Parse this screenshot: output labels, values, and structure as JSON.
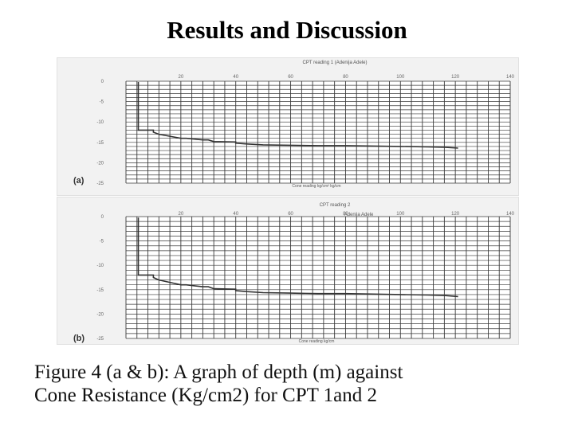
{
  "slide": {
    "title": "Results and Discussion",
    "caption_line1": "Figure 4 (a & b): A graph of depth (m) against",
    "caption_line2": "Cone Resistance (Kg/cm2) for CPT 1and 2"
  },
  "chart_data": [
    {
      "type": "line",
      "panel_label": "(a)",
      "title": "CPT reading 1 (Adenija Adele)",
      "xlabel": "Cone reading kg/cm² kg/cm",
      "ylabel": "",
      "x_ticks": [
        "20",
        "40",
        "60",
        "80",
        "100",
        "120",
        "140"
      ],
      "y_ticks": [
        "0",
        "-5",
        "-10",
        "-15",
        "-20",
        "-25"
      ],
      "xlim": [
        0,
        140
      ],
      "ylim": [
        -25,
        0
      ],
      "grid": true,
      "line_color": "#333333",
      "series": [
        {
          "x": [
            4.5,
            4.5,
            5,
            10,
            10,
            12,
            16,
            20,
            22,
            25,
            28,
            30,
            32,
            40,
            40,
            44,
            50,
            60,
            70,
            80,
            90,
            100,
            110,
            116,
            121
          ],
          "y": [
            -0.2,
            -12,
            -12,
            -12,
            -12.5,
            -13,
            -13.5,
            -14,
            -14,
            -14.2,
            -14.4,
            -14.4,
            -14.8,
            -14.9,
            -15.2,
            -15.4,
            -15.6,
            -15.7,
            -15.8,
            -15.8,
            -15.9,
            -16.0,
            -16.1,
            -16.2,
            -16.4
          ]
        }
      ]
    },
    {
      "type": "line",
      "panel_label": "(b)",
      "title": "CPT reading 2",
      "subtitle": "Adenija Adele",
      "xlabel": "Cone reading kg/cm",
      "ylabel": "",
      "x_ticks": [
        "20",
        "40",
        "60",
        "80",
        "100",
        "120",
        "140"
      ],
      "y_ticks": [
        "0",
        "-5",
        "-10",
        "-15",
        "-20",
        "-25"
      ],
      "xlim": [
        0,
        140
      ],
      "ylim": [
        -25,
        0
      ],
      "grid": true,
      "line_color": "#333333",
      "series": [
        {
          "x": [
            4.5,
            4.5,
            5,
            10,
            10,
            12,
            16,
            20,
            22,
            25,
            28,
            30,
            32,
            40,
            40,
            44,
            50,
            60,
            70,
            80,
            90,
            100,
            110,
            116,
            121
          ],
          "y": [
            -0.2,
            -12,
            -12,
            -12,
            -12.5,
            -13,
            -13.5,
            -14,
            -14,
            -14.2,
            -14.4,
            -14.4,
            -14.8,
            -14.9,
            -15.2,
            -15.4,
            -15.6,
            -15.7,
            -15.8,
            -15.8,
            -15.9,
            -16.0,
            -16.1,
            -16.2,
            -16.4
          ]
        }
      ]
    }
  ]
}
